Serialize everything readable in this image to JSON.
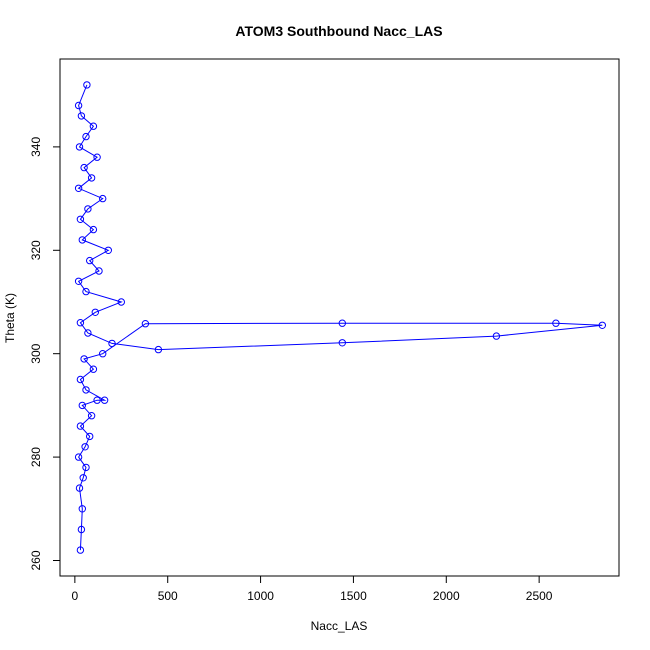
{
  "chart_data": {
    "type": "line",
    "title": "ATOM3 Southbound Nacc_LAS",
    "xlabel": "Nacc_LAS",
    "ylabel": "Theta (K)",
    "xlim": [
      -80,
      2930
    ],
    "ylim": [
      257,
      357
    ],
    "xticks": [
      0,
      500,
      1000,
      1500,
      2000,
      2500
    ],
    "yticks": [
      260,
      280,
      300,
      320,
      340
    ],
    "color": "#0000ff",
    "grid": false,
    "legend": "none",
    "marker": "open-circle",
    "series": [
      {
        "points": [
          [
            30,
            262
          ],
          [
            35,
            266
          ],
          [
            40,
            270
          ],
          [
            25,
            274
          ],
          [
            45,
            276
          ],
          [
            60,
            278
          ],
          [
            20,
            280
          ],
          [
            55,
            282
          ],
          [
            80,
            284
          ],
          [
            30,
            286
          ],
          [
            90,
            288
          ],
          [
            40,
            290
          ],
          [
            120,
            291
          ],
          [
            160,
            291
          ],
          [
            60,
            293
          ],
          [
            30,
            295
          ],
          [
            100,
            297
          ],
          [
            50,
            299
          ],
          [
            150,
            300
          ],
          [
            380,
            305.8
          ],
          [
            1440,
            305.9
          ],
          [
            2590,
            305.9
          ],
          [
            2840,
            305.5
          ],
          [
            2270,
            303.4
          ],
          [
            1440,
            302.1
          ],
          [
            450,
            300.8
          ],
          [
            200,
            302
          ],
          [
            70,
            304
          ],
          [
            30,
            306
          ],
          [
            110,
            308
          ],
          [
            250,
            310
          ],
          [
            60,
            312
          ],
          [
            20,
            314
          ],
          [
            130,
            316
          ],
          [
            80,
            318
          ],
          [
            180,
            320
          ],
          [
            40,
            322
          ],
          [
            100,
            324
          ],
          [
            30,
            326
          ],
          [
            70,
            328
          ],
          [
            150,
            330
          ],
          [
            20,
            332
          ],
          [
            90,
            334
          ],
          [
            50,
            336
          ],
          [
            120,
            338
          ],
          [
            25,
            340
          ],
          [
            60,
            342
          ],
          [
            100,
            344
          ],
          [
            35,
            346
          ],
          [
            20,
            348
          ],
          [
            65,
            352
          ]
        ]
      }
    ]
  }
}
